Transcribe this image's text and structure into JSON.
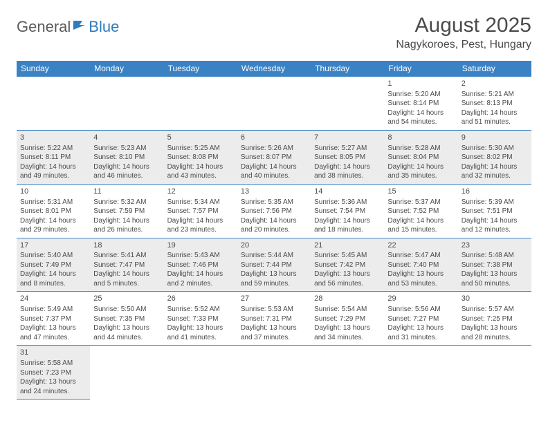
{
  "logo": {
    "part1": "General",
    "part2": "Blue"
  },
  "title": "August 2025",
  "location": "Nagykoroes, Pest, Hungary",
  "colors": {
    "header_bg": "#3b82c4",
    "header_text": "#ffffff",
    "shaded_bg": "#ececec",
    "border": "#3b82c4",
    "text": "#4a4a4a",
    "logo_blue": "#2f7bbf"
  },
  "day_names": [
    "Sunday",
    "Monday",
    "Tuesday",
    "Wednesday",
    "Thursday",
    "Friday",
    "Saturday"
  ],
  "weeks": [
    [
      {
        "empty": true,
        "shaded": false
      },
      {
        "empty": true,
        "shaded": false
      },
      {
        "empty": true,
        "shaded": false
      },
      {
        "empty": true,
        "shaded": false
      },
      {
        "empty": true,
        "shaded": false
      },
      {
        "day": "1",
        "shaded": false,
        "sunrise": "Sunrise: 5:20 AM",
        "sunset": "Sunset: 8:14 PM",
        "daylight": "Daylight: 14 hours and 54 minutes."
      },
      {
        "day": "2",
        "shaded": false,
        "sunrise": "Sunrise: 5:21 AM",
        "sunset": "Sunset: 8:13 PM",
        "daylight": "Daylight: 14 hours and 51 minutes."
      }
    ],
    [
      {
        "day": "3",
        "shaded": true,
        "sunrise": "Sunrise: 5:22 AM",
        "sunset": "Sunset: 8:11 PM",
        "daylight": "Daylight: 14 hours and 49 minutes."
      },
      {
        "day": "4",
        "shaded": true,
        "sunrise": "Sunrise: 5:23 AM",
        "sunset": "Sunset: 8:10 PM",
        "daylight": "Daylight: 14 hours and 46 minutes."
      },
      {
        "day": "5",
        "shaded": true,
        "sunrise": "Sunrise: 5:25 AM",
        "sunset": "Sunset: 8:08 PM",
        "daylight": "Daylight: 14 hours and 43 minutes."
      },
      {
        "day": "6",
        "shaded": true,
        "sunrise": "Sunrise: 5:26 AM",
        "sunset": "Sunset: 8:07 PM",
        "daylight": "Daylight: 14 hours and 40 minutes."
      },
      {
        "day": "7",
        "shaded": true,
        "sunrise": "Sunrise: 5:27 AM",
        "sunset": "Sunset: 8:05 PM",
        "daylight": "Daylight: 14 hours and 38 minutes."
      },
      {
        "day": "8",
        "shaded": true,
        "sunrise": "Sunrise: 5:28 AM",
        "sunset": "Sunset: 8:04 PM",
        "daylight": "Daylight: 14 hours and 35 minutes."
      },
      {
        "day": "9",
        "shaded": true,
        "sunrise": "Sunrise: 5:30 AM",
        "sunset": "Sunset: 8:02 PM",
        "daylight": "Daylight: 14 hours and 32 minutes."
      }
    ],
    [
      {
        "day": "10",
        "shaded": false,
        "sunrise": "Sunrise: 5:31 AM",
        "sunset": "Sunset: 8:01 PM",
        "daylight": "Daylight: 14 hours and 29 minutes."
      },
      {
        "day": "11",
        "shaded": false,
        "sunrise": "Sunrise: 5:32 AM",
        "sunset": "Sunset: 7:59 PM",
        "daylight": "Daylight: 14 hours and 26 minutes."
      },
      {
        "day": "12",
        "shaded": false,
        "sunrise": "Sunrise: 5:34 AM",
        "sunset": "Sunset: 7:57 PM",
        "daylight": "Daylight: 14 hours and 23 minutes."
      },
      {
        "day": "13",
        "shaded": false,
        "sunrise": "Sunrise: 5:35 AM",
        "sunset": "Sunset: 7:56 PM",
        "daylight": "Daylight: 14 hours and 20 minutes."
      },
      {
        "day": "14",
        "shaded": false,
        "sunrise": "Sunrise: 5:36 AM",
        "sunset": "Sunset: 7:54 PM",
        "daylight": "Daylight: 14 hours and 18 minutes."
      },
      {
        "day": "15",
        "shaded": false,
        "sunrise": "Sunrise: 5:37 AM",
        "sunset": "Sunset: 7:52 PM",
        "daylight": "Daylight: 14 hours and 15 minutes."
      },
      {
        "day": "16",
        "shaded": false,
        "sunrise": "Sunrise: 5:39 AM",
        "sunset": "Sunset: 7:51 PM",
        "daylight": "Daylight: 14 hours and 12 minutes."
      }
    ],
    [
      {
        "day": "17",
        "shaded": true,
        "sunrise": "Sunrise: 5:40 AM",
        "sunset": "Sunset: 7:49 PM",
        "daylight": "Daylight: 14 hours and 8 minutes."
      },
      {
        "day": "18",
        "shaded": true,
        "sunrise": "Sunrise: 5:41 AM",
        "sunset": "Sunset: 7:47 PM",
        "daylight": "Daylight: 14 hours and 5 minutes."
      },
      {
        "day": "19",
        "shaded": true,
        "sunrise": "Sunrise: 5:43 AM",
        "sunset": "Sunset: 7:46 PM",
        "daylight": "Daylight: 14 hours and 2 minutes."
      },
      {
        "day": "20",
        "shaded": true,
        "sunrise": "Sunrise: 5:44 AM",
        "sunset": "Sunset: 7:44 PM",
        "daylight": "Daylight: 13 hours and 59 minutes."
      },
      {
        "day": "21",
        "shaded": true,
        "sunrise": "Sunrise: 5:45 AM",
        "sunset": "Sunset: 7:42 PM",
        "daylight": "Daylight: 13 hours and 56 minutes."
      },
      {
        "day": "22",
        "shaded": true,
        "sunrise": "Sunrise: 5:47 AM",
        "sunset": "Sunset: 7:40 PM",
        "daylight": "Daylight: 13 hours and 53 minutes."
      },
      {
        "day": "23",
        "shaded": true,
        "sunrise": "Sunrise: 5:48 AM",
        "sunset": "Sunset: 7:38 PM",
        "daylight": "Daylight: 13 hours and 50 minutes."
      }
    ],
    [
      {
        "day": "24",
        "shaded": false,
        "sunrise": "Sunrise: 5:49 AM",
        "sunset": "Sunset: 7:37 PM",
        "daylight": "Daylight: 13 hours and 47 minutes."
      },
      {
        "day": "25",
        "shaded": false,
        "sunrise": "Sunrise: 5:50 AM",
        "sunset": "Sunset: 7:35 PM",
        "daylight": "Daylight: 13 hours and 44 minutes."
      },
      {
        "day": "26",
        "shaded": false,
        "sunrise": "Sunrise: 5:52 AM",
        "sunset": "Sunset: 7:33 PM",
        "daylight": "Daylight: 13 hours and 41 minutes."
      },
      {
        "day": "27",
        "shaded": false,
        "sunrise": "Sunrise: 5:53 AM",
        "sunset": "Sunset: 7:31 PM",
        "daylight": "Daylight: 13 hours and 37 minutes."
      },
      {
        "day": "28",
        "shaded": false,
        "sunrise": "Sunrise: 5:54 AM",
        "sunset": "Sunset: 7:29 PM",
        "daylight": "Daylight: 13 hours and 34 minutes."
      },
      {
        "day": "29",
        "shaded": false,
        "sunrise": "Sunrise: 5:56 AM",
        "sunset": "Sunset: 7:27 PM",
        "daylight": "Daylight: 13 hours and 31 minutes."
      },
      {
        "day": "30",
        "shaded": false,
        "sunrise": "Sunrise: 5:57 AM",
        "sunset": "Sunset: 7:25 PM",
        "daylight": "Daylight: 13 hours and 28 minutes."
      }
    ],
    [
      {
        "day": "31",
        "shaded": true,
        "sunrise": "Sunrise: 5:58 AM",
        "sunset": "Sunset: 7:23 PM",
        "daylight": "Daylight: 13 hours and 24 minutes."
      },
      {
        "empty": true,
        "shaded": false
      },
      {
        "empty": true,
        "shaded": false
      },
      {
        "empty": true,
        "shaded": false
      },
      {
        "empty": true,
        "shaded": false
      },
      {
        "empty": true,
        "shaded": false
      },
      {
        "empty": true,
        "shaded": false
      }
    ]
  ]
}
